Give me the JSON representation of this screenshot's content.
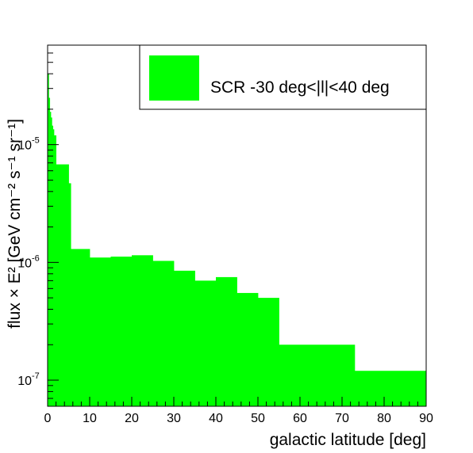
{
  "chart_data": {
    "type": "area",
    "style": "step-histogram",
    "fill_color": "#00ff00",
    "xlabel": "galactic latitude [deg]",
    "ylabel": "flux × E² [GeV cm⁻² s⁻¹ sr⁻¹]",
    "xlim": [
      0,
      90
    ],
    "ylim": [
      6e-08,
      7e-05
    ],
    "y_scale": "log",
    "grid": false,
    "x_ticks": [
      "0",
      "10",
      "20",
      "30",
      "40",
      "50",
      "60",
      "70",
      "80",
      "90"
    ],
    "y_ticks": [
      {
        "value": 1e-07,
        "base": "10",
        "exp": "-7"
      },
      {
        "value": 1e-06,
        "base": "10",
        "exp": "-6"
      },
      {
        "value": 1e-05,
        "base": "10",
        "exp": "-5"
      }
    ],
    "legend": {
      "position": "top-right",
      "entries": [
        {
          "label": "SCR -30 deg<|l|<40 deg",
          "color": "#00ff00"
        }
      ]
    },
    "bins": [
      {
        "x0": 0,
        "x1": 0.25,
        "y": 4e-05
      },
      {
        "x0": 0.25,
        "x1": 0.5,
        "y": 2.5e-05
      },
      {
        "x0": 0.5,
        "x1": 0.75,
        "y": 1.9e-05
      },
      {
        "x0": 0.75,
        "x1": 1.0,
        "y": 1.7e-05
      },
      {
        "x0": 1.0,
        "x1": 1.25,
        "y": 1.45e-05
      },
      {
        "x0": 1.25,
        "x1": 1.5,
        "y": 1.35e-05
      },
      {
        "x0": 1.5,
        "x1": 2.0,
        "y": 1.2e-05
      },
      {
        "x0": 2.0,
        "x1": 5.0,
        "y": 6.8e-06
      },
      {
        "x0": 5.0,
        "x1": 5.5,
        "y": 4.7e-06
      },
      {
        "x0": 5.5,
        "x1": 10.0,
        "y": 1.3e-06
      },
      {
        "x0": 10.0,
        "x1": 15.0,
        "y": 1.1e-06
      },
      {
        "x0": 15.0,
        "x1": 20.0,
        "y": 1.12e-06
      },
      {
        "x0": 20.0,
        "x1": 25.0,
        "y": 1.15e-06
      },
      {
        "x0": 25.0,
        "x1": 30.0,
        "y": 1.03e-06
      },
      {
        "x0": 30.0,
        "x1": 35.0,
        "y": 8.5e-07
      },
      {
        "x0": 35.0,
        "x1": 40.0,
        "y": 7e-07
      },
      {
        "x0": 40.0,
        "x1": 45.0,
        "y": 7.5e-07
      },
      {
        "x0": 45.0,
        "x1": 50.0,
        "y": 5.5e-07
      },
      {
        "x0": 50.0,
        "x1": 55.0,
        "y": 5e-07
      },
      {
        "x0": 55.0,
        "x1": 73.0,
        "y": 2e-07
      },
      {
        "x0": 73.0,
        "x1": 90.0,
        "y": 1.2e-07
      }
    ]
  }
}
